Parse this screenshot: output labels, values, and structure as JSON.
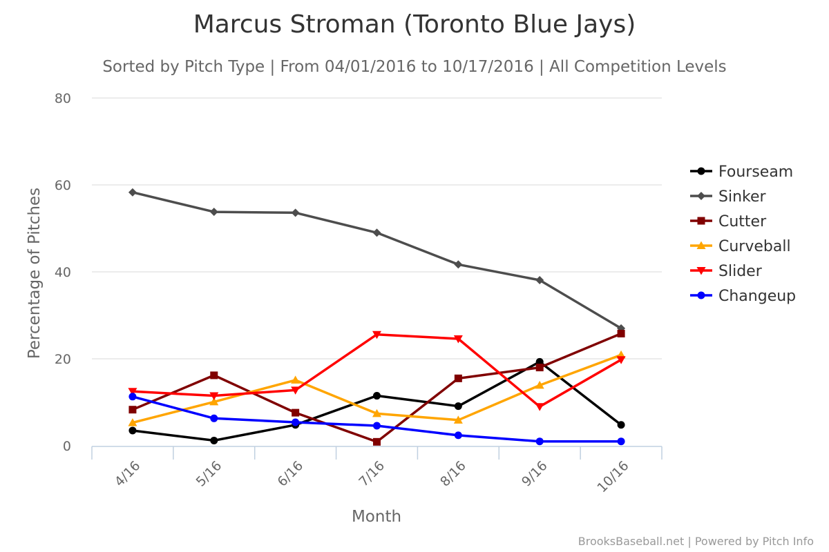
{
  "chart_data": {
    "type": "line",
    "title": "Marcus Stroman (Toronto Blue Jays)",
    "subtitle": "Sorted by Pitch Type | From 04/01/2016 to 10/17/2016 | All Competition Levels",
    "xlabel": "Month",
    "ylabel": "Percentage of Pitches",
    "categories": [
      "4/16",
      "5/16",
      "6/16",
      "7/16",
      "8/16",
      "9/16",
      "10/16"
    ],
    "ylim": [
      0,
      80
    ],
    "yticks": [
      0,
      20,
      40,
      60,
      80
    ],
    "grid": true,
    "legend_position": "right",
    "credits": "BrooksBaseball.net | Powered by Pitch Info",
    "series": [
      {
        "name": "Fourseam",
        "color": "#000000",
        "marker": "circle",
        "values": [
          3.5,
          1.2,
          4.8,
          11.5,
          9.1,
          19.3,
          4.8
        ]
      },
      {
        "name": "Sinker",
        "color": "#4d4d4d",
        "marker": "diamond",
        "values": [
          58.3,
          53.8,
          53.6,
          49.0,
          41.7,
          38.1,
          27.0
        ]
      },
      {
        "name": "Cutter",
        "color": "#800000",
        "marker": "square",
        "values": [
          8.3,
          16.2,
          7.6,
          0.9,
          15.5,
          18.0,
          25.8
        ]
      },
      {
        "name": "Curveball",
        "color": "#ffa500",
        "marker": "triangle",
        "values": [
          5.3,
          10.1,
          15.1,
          7.4,
          5.9,
          13.9,
          20.9
        ]
      },
      {
        "name": "Slider",
        "color": "#ff0000",
        "marker": "triangle-down",
        "values": [
          12.5,
          11.5,
          12.8,
          25.6,
          24.6,
          9.0,
          19.8
        ]
      },
      {
        "name": "Changeup",
        "color": "#0000ff",
        "marker": "circle",
        "values": [
          11.3,
          6.3,
          5.4,
          4.6,
          2.4,
          1.0,
          1.0
        ]
      }
    ]
  }
}
